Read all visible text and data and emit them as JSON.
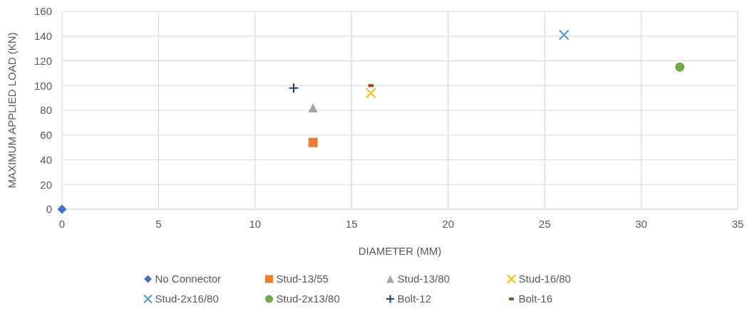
{
  "chart_data": {
    "type": "scatter",
    "xlabel": "DIAMETER (MM)",
    "ylabel": "MAXIMUM APPLIED LOAD (KN)",
    "xlim": [
      0,
      35
    ],
    "xticks": [
      0,
      5,
      10,
      15,
      20,
      25,
      30,
      35
    ],
    "ylim": [
      0,
      160
    ],
    "yticks": [
      0,
      20,
      40,
      60,
      80,
      100,
      120,
      140,
      160
    ],
    "grid": true,
    "legend": "bottom",
    "series": [
      {
        "name": "No Connector",
        "color": "#4472c4",
        "marker": "diamond",
        "x": [
          0
        ],
        "values": [
          0
        ]
      },
      {
        "name": "Stud-13/55",
        "color": "#ed7d31",
        "marker": "square",
        "x": [
          13
        ],
        "values": [
          54
        ]
      },
      {
        "name": "Stud-13/80",
        "color": "#a5a5a5",
        "marker": "triangle",
        "x": [
          13
        ],
        "values": [
          82
        ]
      },
      {
        "name": "Stud-16/80",
        "color": "#ffc000",
        "marker": "cross",
        "x": [
          16
        ],
        "values": [
          94
        ]
      },
      {
        "name": "Stud-2x16/80",
        "color": "#5b9bd5",
        "marker": "cross",
        "x": [
          26
        ],
        "values": [
          141
        ]
      },
      {
        "name": "Stud-2x13/80",
        "color": "#70ad47",
        "marker": "circle",
        "x": [
          32
        ],
        "values": [
          115
        ]
      },
      {
        "name": "Bolt-12",
        "color": "#264478",
        "marker": "plus",
        "x": [
          12
        ],
        "values": [
          98
        ]
      },
      {
        "name": "Bolt-16",
        "color": "#9e480e",
        "x": [
          16
        ],
        "values": [
          100
        ]
      }
    ]
  }
}
